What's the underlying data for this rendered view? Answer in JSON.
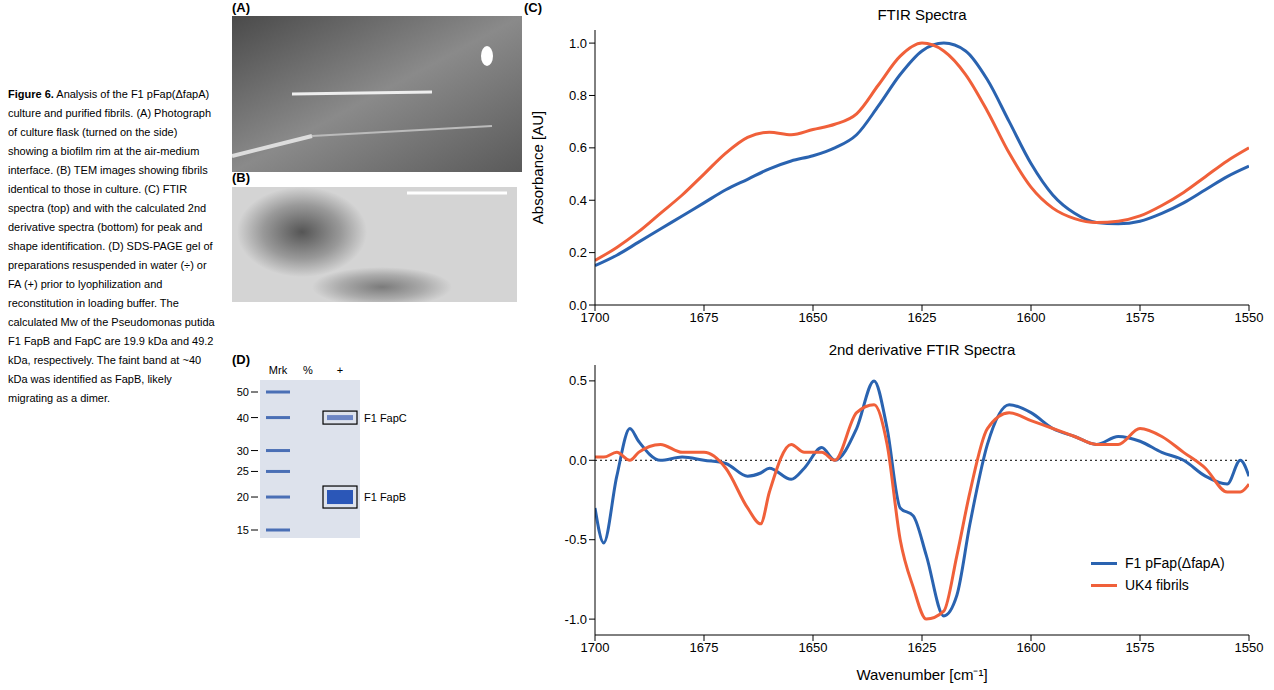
{
  "caption": {
    "label": "Figure 6.",
    "text": "Analysis of the F1 pFap(ΔfapA) culture and purified fibrils. (A) Photograph of culture flask (turned on the side) showing a biofilm rim at the air-medium interface. (B) TEM images showing fibrils identical to those in culture. (C) FTIR spectra (top) and with the calculated 2nd derivative spectra (bottom) for peak and shape identification. (D) SDS-PAGE gel of preparations resuspended in water (÷) or FA (+) prior to lyophilization and reconstitution in loading buffer. The calculated Mw of the Pseudomonas putida F1 FapB and FapC are 19.9 kDa and 49.2 kDa, respectively. The faint band at ~40 kDa was identified as FapB, likely migrating as a dimer."
  },
  "panel_labels": [
    "(A)",
    "(B)",
    "(C)",
    "(D)"
  ],
  "gel": {
    "lanes": [
      "Mrk",
      "%",
      "+"
    ],
    "marker_kda": [
      50,
      40,
      30,
      25,
      20,
      15
    ],
    "bands": [
      {
        "label": "F1 FapC",
        "lane": "+",
        "kda": 40
      },
      {
        "label": "F1 FapB",
        "lane": "+",
        "kda": 20
      }
    ]
  },
  "chart_data": [
    {
      "type": "line",
      "title": "FTIR Spectra",
      "y_label": "Absorbance [AU]",
      "x": [
        1700,
        1695,
        1690,
        1685,
        1680,
        1675,
        1670,
        1665,
        1660,
        1655,
        1650,
        1645,
        1640,
        1635,
        1630,
        1625,
        1620,
        1615,
        1610,
        1605,
        1600,
        1595,
        1590,
        1585,
        1580,
        1575,
        1570,
        1565,
        1560,
        1555,
        1550
      ],
      "series": [
        {
          "color": "#2a63b0",
          "values": [
            0.15,
            0.19,
            0.24,
            0.29,
            0.34,
            0.39,
            0.44,
            0.48,
            0.52,
            0.55,
            0.57,
            0.6,
            0.65,
            0.76,
            0.88,
            0.97,
            1.0,
            0.97,
            0.86,
            0.7,
            0.54,
            0.42,
            0.35,
            0.315,
            0.31,
            0.32,
            0.35,
            0.39,
            0.44,
            0.49,
            0.53
          ]
        },
        {
          "color": "#f0603a",
          "values": [
            0.17,
            0.22,
            0.28,
            0.35,
            0.42,
            0.5,
            0.58,
            0.64,
            0.66,
            0.65,
            0.67,
            0.69,
            0.73,
            0.84,
            0.95,
            1.0,
            0.97,
            0.88,
            0.74,
            0.58,
            0.45,
            0.37,
            0.33,
            0.315,
            0.32,
            0.34,
            0.38,
            0.43,
            0.49,
            0.55,
            0.6
          ]
        }
      ],
      "xlim": [
        1700,
        1550
      ],
      "xticks": [
        1700,
        1675,
        1650,
        1625,
        1600,
        1575,
        1550
      ],
      "ylim": [
        0,
        1.05
      ],
      "yticks": [
        {
          "value": 0,
          "label": "0.0"
        },
        0.2,
        0.4,
        0.6,
        0.8,
        {
          "value": 1,
          "label": "1.0"
        }
      ]
    },
    {
      "type": "line",
      "title": "2nd derivative FTIR Spectra",
      "x_label": "Wavenumber [cm⁻¹]",
      "x": [
        1700,
        1698,
        1695,
        1692,
        1690,
        1685,
        1680,
        1675,
        1670,
        1665,
        1662,
        1660,
        1655,
        1652,
        1648,
        1645,
        1640,
        1636,
        1633,
        1630,
        1627,
        1624,
        1620,
        1617,
        1614,
        1610,
        1605,
        1600,
        1595,
        1590,
        1585,
        1580,
        1575,
        1570,
        1565,
        1560,
        1555,
        1552,
        1550
      ],
      "series": [
        {
          "name": "F1 pFap(ΔfapA)",
          "color": "#2a63b0",
          "values": [
            -0.3,
            -0.52,
            -0.1,
            0.2,
            0.12,
            0.0,
            0.02,
            0.0,
            -0.02,
            -0.1,
            -0.08,
            -0.05,
            -0.12,
            -0.05,
            0.08,
            0.0,
            0.2,
            0.5,
            0.2,
            -0.3,
            -0.35,
            -0.6,
            -0.98,
            -0.85,
            -0.4,
            0.1,
            0.35,
            0.3,
            0.2,
            0.15,
            0.1,
            0.15,
            0.12,
            0.05,
            0.0,
            -0.1,
            -0.15,
            0.0,
            -0.1
          ]
        },
        {
          "name": "UK4 fibrils",
          "color": "#f0603a",
          "values": [
            0.02,
            0.02,
            0.05,
            0.0,
            0.05,
            0.1,
            0.05,
            0.05,
            -0.05,
            -0.3,
            -0.4,
            -0.2,
            0.1,
            0.05,
            0.05,
            0.0,
            0.3,
            0.35,
            0.1,
            -0.5,
            -0.8,
            -1.0,
            -0.95,
            -0.6,
            -0.2,
            0.2,
            0.3,
            0.25,
            0.2,
            0.15,
            0.1,
            0.1,
            0.2,
            0.15,
            0.05,
            -0.05,
            -0.2,
            -0.2,
            -0.15
          ]
        }
      ],
      "xlim": [
        1700,
        1550
      ],
      "xticks": [
        1700,
        1675,
        1650,
        1625,
        1600,
        1575,
        1550
      ],
      "ylim": [
        -1.1,
        0.6
      ],
      "yticks": [
        {
          "value": -1,
          "label": "-1.0"
        },
        -0.5,
        {
          "value": 0,
          "label": "0.0"
        },
        0.5
      ],
      "reference_line": 0,
      "legend": "lower right"
    }
  ]
}
